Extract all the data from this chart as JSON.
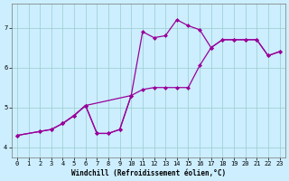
{
  "xlabel": "Windchill (Refroidissement éolien,°C)",
  "bg_color": "#cceeff",
  "line_color": "#990099",
  "xlim": [
    -0.5,
    23.5
  ],
  "ylim": [
    3.75,
    7.6
  ],
  "yticks": [
    4,
    5,
    6,
    7
  ],
  "xticks": [
    0,
    1,
    2,
    3,
    4,
    5,
    6,
    7,
    8,
    9,
    10,
    11,
    12,
    13,
    14,
    15,
    16,
    17,
    18,
    19,
    20,
    21,
    22,
    23
  ],
  "grid_color": "#99cccc",
  "markersize": 2.5,
  "linewidth": 0.9,
  "line1_x": [
    0,
    2,
    3,
    4,
    5,
    6,
    7,
    8,
    9,
    10,
    11,
    12,
    13,
    14,
    15,
    16,
    17,
    18,
    19,
    20,
    21,
    22,
    23
  ],
  "line1_y": [
    4.3,
    4.4,
    4.45,
    4.6,
    4.8,
    5.05,
    4.35,
    4.35,
    4.45,
    5.3,
    5.45,
    5.5,
    5.5,
    5.5,
    5.5,
    6.05,
    6.5,
    6.7,
    6.7,
    6.7,
    6.7,
    6.3,
    6.4
  ],
  "line2_x": [
    0,
    2,
    3,
    4,
    5,
    6,
    10,
    11,
    12,
    13,
    14,
    15,
    16,
    17,
    18,
    19,
    20,
    21,
    22,
    23
  ],
  "line2_y": [
    4.3,
    4.4,
    4.45,
    4.6,
    4.8,
    5.05,
    5.3,
    6.9,
    6.75,
    6.8,
    7.2,
    7.05,
    6.95,
    6.5,
    6.7,
    6.7,
    6.7,
    6.7,
    6.3,
    6.4
  ],
  "line3_x": [
    4,
    5,
    6,
    7,
    8,
    9,
    10
  ],
  "line3_y": [
    4.6,
    4.8,
    5.05,
    4.35,
    4.35,
    4.45,
    5.3
  ]
}
